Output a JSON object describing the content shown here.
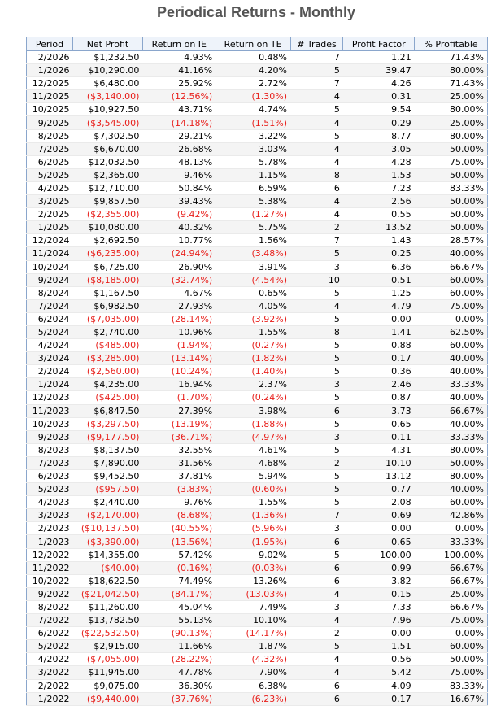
{
  "title": "Periodical Returns - Monthly",
  "colors": {
    "negative": "#e8201c",
    "header_bg": "#eef3fa",
    "border": "#8aa6cc",
    "title": "#555555"
  },
  "columns": [
    "Period",
    "Net Profit",
    "Return on IE",
    "Return on TE",
    "# Trades",
    "Profit Factor",
    "% Profitable"
  ],
  "rows": [
    [
      "2/2026",
      "$1,232.50",
      "4.93%",
      "0.48%",
      "7",
      "1.21",
      "71.43%"
    ],
    [
      "1/2026",
      "$10,290.00",
      "41.16%",
      "4.20%",
      "5",
      "39.47",
      "80.00%"
    ],
    [
      "12/2025",
      "$6,480.00",
      "25.92%",
      "2.72%",
      "7",
      "4.26",
      "71.43%"
    ],
    [
      "11/2025",
      "($3,140.00)",
      "(12.56%)",
      "(1.30%)",
      "4",
      "0.31",
      "25.00%"
    ],
    [
      "10/2025",
      "$10,927.50",
      "43.71%",
      "4.74%",
      "5",
      "9.54",
      "80.00%"
    ],
    [
      "9/2025",
      "($3,545.00)",
      "(14.18%)",
      "(1.51%)",
      "4",
      "0.29",
      "25.00%"
    ],
    [
      "8/2025",
      "$7,302.50",
      "29.21%",
      "3.22%",
      "5",
      "8.77",
      "80.00%"
    ],
    [
      "7/2025",
      "$6,670.00",
      "26.68%",
      "3.03%",
      "4",
      "3.05",
      "50.00%"
    ],
    [
      "6/2025",
      "$12,032.50",
      "48.13%",
      "5.78%",
      "4",
      "4.28",
      "75.00%"
    ],
    [
      "5/2025",
      "$2,365.00",
      "9.46%",
      "1.15%",
      "8",
      "1.53",
      "50.00%"
    ],
    [
      "4/2025",
      "$12,710.00",
      "50.84%",
      "6.59%",
      "6",
      "7.23",
      "83.33%"
    ],
    [
      "3/2025",
      "$9,857.50",
      "39.43%",
      "5.38%",
      "4",
      "2.56",
      "50.00%"
    ],
    [
      "2/2025",
      "($2,355.00)",
      "(9.42%)",
      "(1.27%)",
      "4",
      "0.55",
      "50.00%"
    ],
    [
      "1/2025",
      "$10,080.00",
      "40.32%",
      "5.75%",
      "2",
      "13.52",
      "50.00%"
    ],
    [
      "12/2024",
      "$2,692.50",
      "10.77%",
      "1.56%",
      "7",
      "1.43",
      "28.57%"
    ],
    [
      "11/2024",
      "($6,235.00)",
      "(24.94%)",
      "(3.48%)",
      "5",
      "0.25",
      "40.00%"
    ],
    [
      "10/2024",
      "$6,725.00",
      "26.90%",
      "3.91%",
      "3",
      "6.36",
      "66.67%"
    ],
    [
      "9/2024",
      "($8,185.00)",
      "(32.74%)",
      "(4.54%)",
      "10",
      "0.51",
      "60.00%"
    ],
    [
      "8/2024",
      "$1,167.50",
      "4.67%",
      "0.65%",
      "5",
      "1.25",
      "60.00%"
    ],
    [
      "7/2024",
      "$6,982.50",
      "27.93%",
      "4.05%",
      "4",
      "4.79",
      "75.00%"
    ],
    [
      "6/2024",
      "($7,035.00)",
      "(28.14%)",
      "(3.92%)",
      "5",
      "0.00",
      "0.00%"
    ],
    [
      "5/2024",
      "$2,740.00",
      "10.96%",
      "1.55%",
      "8",
      "1.41",
      "62.50%"
    ],
    [
      "4/2024",
      "($485.00)",
      "(1.94%)",
      "(0.27%)",
      "5",
      "0.88",
      "60.00%"
    ],
    [
      "3/2024",
      "($3,285.00)",
      "(13.14%)",
      "(1.82%)",
      "5",
      "0.17",
      "40.00%"
    ],
    [
      "2/2024",
      "($2,560.00)",
      "(10.24%)",
      "(1.40%)",
      "5",
      "0.36",
      "40.00%"
    ],
    [
      "1/2024",
      "$4,235.00",
      "16.94%",
      "2.37%",
      "3",
      "2.46",
      "33.33%"
    ],
    [
      "12/2023",
      "($425.00)",
      "(1.70%)",
      "(0.24%)",
      "5",
      "0.87",
      "40.00%"
    ],
    [
      "11/2023",
      "$6,847.50",
      "27.39%",
      "3.98%",
      "6",
      "3.73",
      "66.67%"
    ],
    [
      "10/2023",
      "($3,297.50)",
      "(13.19%)",
      "(1.88%)",
      "5",
      "0.65",
      "40.00%"
    ],
    [
      "9/2023",
      "($9,177.50)",
      "(36.71%)",
      "(4.97%)",
      "3",
      "0.11",
      "33.33%"
    ],
    [
      "8/2023",
      "$8,137.50",
      "32.55%",
      "4.61%",
      "5",
      "4.31",
      "80.00%"
    ],
    [
      "7/2023",
      "$7,890.00",
      "31.56%",
      "4.68%",
      "2",
      "10.10",
      "50.00%"
    ],
    [
      "6/2023",
      "$9,452.50",
      "37.81%",
      "5.94%",
      "5",
      "13.12",
      "80.00%"
    ],
    [
      "5/2023",
      "($957.50)",
      "(3.83%)",
      "(0.60%)",
      "5",
      "0.77",
      "40.00%"
    ],
    [
      "4/2023",
      "$2,440.00",
      "9.76%",
      "1.55%",
      "5",
      "2.08",
      "60.00%"
    ],
    [
      "3/2023",
      "($2,170.00)",
      "(8.68%)",
      "(1.36%)",
      "7",
      "0.69",
      "42.86%"
    ],
    [
      "2/2023",
      "($10,137.50)",
      "(40.55%)",
      "(5.96%)",
      "3",
      "0.00",
      "0.00%"
    ],
    [
      "1/2023",
      "($3,390.00)",
      "(13.56%)",
      "(1.95%)",
      "6",
      "0.65",
      "33.33%"
    ],
    [
      "12/2022",
      "$14,355.00",
      "57.42%",
      "9.02%",
      "5",
      "100.00",
      "100.00%"
    ],
    [
      "11/2022",
      "($40.00)",
      "(0.16%)",
      "(0.03%)",
      "6",
      "0.99",
      "66.67%"
    ],
    [
      "10/2022",
      "$18,622.50",
      "74.49%",
      "13.26%",
      "6",
      "3.82",
      "66.67%"
    ],
    [
      "9/2022",
      "($21,042.50)",
      "(84.17%)",
      "(13.03%)",
      "4",
      "0.15",
      "25.00%"
    ],
    [
      "8/2022",
      "$11,260.00",
      "45.04%",
      "7.49%",
      "3",
      "7.33",
      "66.67%"
    ],
    [
      "7/2022",
      "$13,782.50",
      "55.13%",
      "10.10%",
      "4",
      "7.96",
      "75.00%"
    ],
    [
      "6/2022",
      "($22,532.50)",
      "(90.13%)",
      "(14.17%)",
      "2",
      "0.00",
      "0.00%"
    ],
    [
      "5/2022",
      "$2,915.00",
      "11.66%",
      "1.87%",
      "5",
      "1.51",
      "60.00%"
    ],
    [
      "4/2022",
      "($7,055.00)",
      "(28.22%)",
      "(4.32%)",
      "4",
      "0.56",
      "50.00%"
    ],
    [
      "3/2022",
      "$11,945.00",
      "47.78%",
      "7.90%",
      "4",
      "5.42",
      "75.00%"
    ],
    [
      "2/2022",
      "$9,075.00",
      "36.30%",
      "6.38%",
      "6",
      "4.09",
      "83.33%"
    ],
    [
      "1/2022",
      "($9,440.00)",
      "(37.76%)",
      "(6.23%)",
      "6",
      "0.17",
      "16.67%"
    ]
  ]
}
